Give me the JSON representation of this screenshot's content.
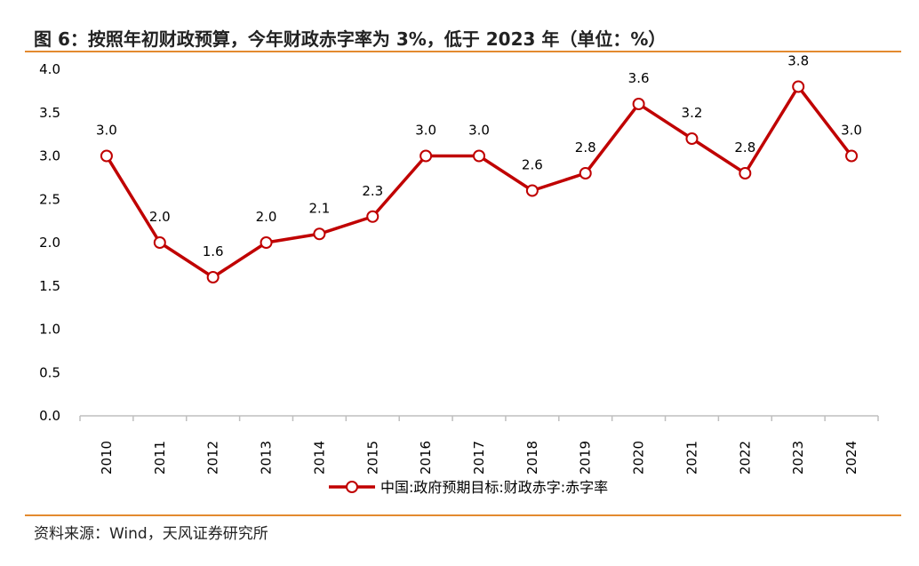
{
  "title": "图 6：按照年初财政预算，今年财政赤字率为 3%，低于 2023 年（单位：%）",
  "source": "资料来源：Wind，天风证券研究所",
  "colors": {
    "line": "#c00000",
    "rule": "#e38a2f",
    "axis": "#bfbfbf"
  },
  "chart_data": {
    "type": "line",
    "categories": [
      "2010",
      "2011",
      "2012",
      "2013",
      "2014",
      "2015",
      "2016",
      "2017",
      "2018",
      "2019",
      "2020",
      "2021",
      "2022",
      "2023",
      "2024"
    ],
    "series": [
      {
        "name": "中国:政府预期目标:财政赤字:赤字率",
        "values": [
          3.0,
          2.0,
          1.6,
          2.0,
          2.1,
          2.3,
          3.0,
          3.0,
          2.6,
          2.8,
          3.6,
          3.2,
          2.8,
          3.8,
          3.0
        ],
        "labels": [
          "3.0",
          "2.0",
          "1.6",
          "2.0",
          "2.1",
          "2.3",
          "3.0",
          "3.0",
          "2.6",
          "2.8",
          "3.6",
          "3.2",
          "2.8",
          "3.8",
          "3.0"
        ]
      }
    ],
    "yticks": [
      "0.0",
      "0.5",
      "1.0",
      "1.5",
      "2.0",
      "2.5",
      "3.0",
      "3.5",
      "4.0"
    ],
    "ylim": [
      0,
      4.0
    ],
    "grid": false,
    "legend": "bottom-center"
  }
}
